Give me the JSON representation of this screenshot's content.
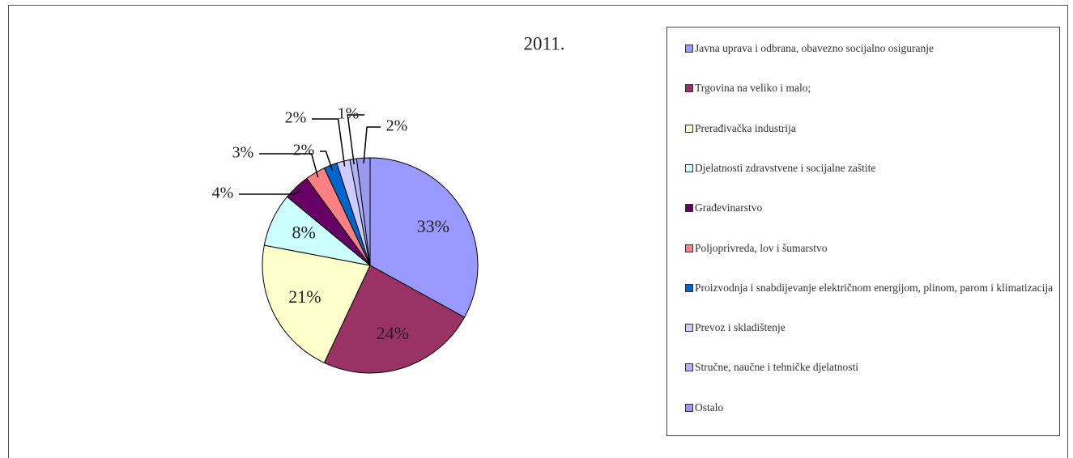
{
  "chart_data": {
    "type": "pie",
    "title": "2011.",
    "categories": [
      "Javna uprava i odbrana, obavezno socijalno osiguranje",
      "Trgovina na veliko i malo;",
      "Prerađivačka industrija",
      "Djelatnosti zdravstvene i socijalne zaštite",
      "Građevinarstvo",
      "Poljoprivreda, lov i šumarstvo",
      "Proizvodnja i snabdijevanje električnom energijom, plinom, parom i klimatizacija",
      "Prevoz i skladištenje",
      "Stručne, naučne i tehničke djelatnosti",
      "Ostalo"
    ],
    "values": [
      33,
      24,
      21,
      8,
      4,
      3,
      2,
      2,
      1,
      2
    ],
    "value_labels": [
      "33%",
      "24%",
      "21%",
      "8%",
      "4%",
      "3%",
      "2%",
      "2%",
      "1%",
      "2%"
    ],
    "colors": [
      "#9999ff",
      "#993366",
      "#ffffcc",
      "#ccffff",
      "#660066",
      "#ff8080",
      "#0066cc",
      "#ccccff",
      "#b0b0f8",
      "#9999ee"
    ],
    "legend": "right"
  }
}
